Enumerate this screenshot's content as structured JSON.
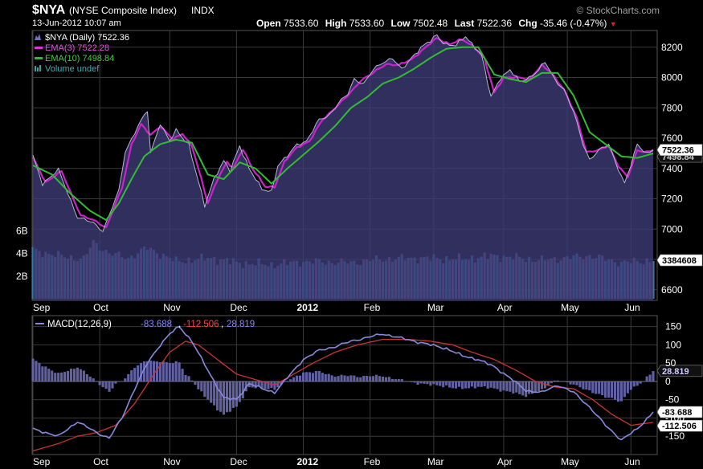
{
  "header": {
    "symbol": "$NYA",
    "name": "(NYSE Composite Index)",
    "exchange": "INDX",
    "watermark": "© StockCharts.com",
    "date": "13-Jun-2012 10:07 am",
    "open_label": "Open",
    "open": "7533.60",
    "high_label": "High",
    "high": "7533.60",
    "low_label": "Low",
    "low": "7502.48",
    "last_label": "Last",
    "last": "7522.36",
    "chg_label": "Chg",
    "chg": "-35.46 (-0.47%)",
    "chg_arrow": "▼"
  },
  "colors": {
    "area_fill": "#3d3c78",
    "area_line": "#b6b6d6",
    "ema3": "#cc22cc",
    "ema10": "#33bb33",
    "vol_up": "#3a7fa5",
    "vol_down": "#7c5a93",
    "macd": "#8888dd",
    "signal": "#cc3333",
    "hist": "#6a6ab4",
    "grid": "#3a3a3a"
  },
  "chart_data": [
    {
      "type": "line",
      "title": "$NYA (Daily) 7522.36",
      "legend": [
        {
          "label": "$NYA (Daily) 7522.36",
          "series": "price"
        },
        {
          "label": "EMA(3) 7522.28",
          "series": "ema3"
        },
        {
          "label": "EMA(10) 7498.84",
          "series": "ema10"
        },
        {
          "label": "Volume undef",
          "series": "volume"
        }
      ],
      "x_labels": [
        "Sep",
        "Oct",
        "Nov",
        "Dec",
        "2012",
        "Feb",
        "Mar",
        "Apr",
        "May",
        "Jun"
      ],
      "x_label_bold": "2012",
      "y_ticks": [
        6600,
        6800,
        7000,
        7200,
        7400,
        7600,
        7800,
        8000,
        8200
      ],
      "ylim": [
        6530,
        8310
      ],
      "volume_ticks": [
        "2B",
        "4B",
        "6B"
      ],
      "volume_ylim": [
        0,
        9
      ],
      "price_label": "7522.36",
      "ema_label": "7498.84",
      "volume_label": "3384608",
      "price_keypoints": [
        [
          0,
          7480
        ],
        [
          3,
          7300
        ],
        [
          8,
          7390
        ],
        [
          14,
          7080
        ],
        [
          19,
          7040
        ],
        [
          22,
          6990
        ],
        [
          27,
          7250
        ],
        [
          29,
          7510
        ],
        [
          33,
          7680
        ],
        [
          36,
          7780
        ],
        [
          37,
          7500
        ],
        [
          40,
          7700
        ],
        [
          43,
          7580
        ],
        [
          45,
          7650
        ],
        [
          49,
          7560
        ],
        [
          54,
          7150
        ],
        [
          57,
          7340
        ],
        [
          60,
          7450
        ],
        [
          62,
          7380
        ],
        [
          65,
          7550
        ],
        [
          68,
          7400
        ],
        [
          72,
          7260
        ],
        [
          75,
          7250
        ],
        [
          77,
          7420
        ],
        [
          80,
          7480
        ],
        [
          83,
          7560
        ],
        [
          86,
          7580
        ],
        [
          90,
          7720
        ],
        [
          93,
          7750
        ],
        [
          96,
          7830
        ],
        [
          99,
          7890
        ],
        [
          101,
          7990
        ],
        [
          104,
          7960
        ],
        [
          107,
          8050
        ],
        [
          110,
          8100
        ],
        [
          113,
          8130
        ],
        [
          116,
          8050
        ],
        [
          119,
          8130
        ],
        [
          122,
          8200
        ],
        [
          125,
          8240
        ],
        [
          127,
          8280
        ],
        [
          128,
          8250
        ],
        [
          130,
          8220
        ],
        [
          133,
          8210
        ],
        [
          136,
          8270
        ],
        [
          139,
          8200
        ],
        [
          141,
          8150
        ],
        [
          144,
          7870
        ],
        [
          147,
          8000
        ],
        [
          150,
          8050
        ],
        [
          153,
          7970
        ],
        [
          156,
          8000
        ],
        [
          159,
          8050
        ],
        [
          161,
          8100
        ],
        [
          164,
          7990
        ],
        [
          167,
          7920
        ],
        [
          170,
          7770
        ],
        [
          173,
          7560
        ],
        [
          175,
          7460
        ],
        [
          178,
          7520
        ],
        [
          181,
          7560
        ],
        [
          184,
          7400
        ],
        [
          186,
          7300
        ],
        [
          188,
          7420
        ],
        [
          190,
          7560
        ],
        [
          193,
          7500
        ],
        [
          195,
          7522
        ]
      ],
      "ema3_keypoints": [
        [
          0,
          7470
        ],
        [
          4,
          7310
        ],
        [
          9,
          7380
        ],
        [
          15,
          7090
        ],
        [
          20,
          7050
        ],
        [
          23,
          7010
        ],
        [
          28,
          7270
        ],
        [
          31,
          7560
        ],
        [
          34,
          7690
        ],
        [
          37,
          7620
        ],
        [
          40,
          7680
        ],
        [
          44,
          7590
        ],
        [
          47,
          7630
        ],
        [
          50,
          7550
        ],
        [
          55,
          7170
        ],
        [
          58,
          7330
        ],
        [
          61,
          7440
        ],
        [
          63,
          7400
        ],
        [
          66,
          7530
        ],
        [
          69,
          7400
        ],
        [
          73,
          7280
        ],
        [
          76,
          7280
        ],
        [
          79,
          7440
        ],
        [
          83,
          7540
        ],
        [
          87,
          7580
        ],
        [
          91,
          7720
        ],
        [
          95,
          7800
        ],
        [
          99,
          7880
        ],
        [
          103,
          7980
        ],
        [
          107,
          8030
        ],
        [
          111,
          8090
        ],
        [
          115,
          8080
        ],
        [
          119,
          8120
        ],
        [
          123,
          8190
        ],
        [
          127,
          8260
        ],
        [
          131,
          8220
        ],
        [
          135,
          8250
        ],
        [
          139,
          8200
        ],
        [
          142,
          8120
        ],
        [
          145,
          7900
        ],
        [
          148,
          8000
        ],
        [
          152,
          8000
        ],
        [
          156,
          7990
        ],
        [
          160,
          8080
        ],
        [
          163,
          8030
        ],
        [
          167,
          7920
        ],
        [
          171,
          7730
        ],
        [
          174,
          7510
        ],
        [
          178,
          7520
        ],
        [
          181,
          7550
        ],
        [
          184,
          7420
        ],
        [
          187,
          7340
        ],
        [
          190,
          7520
        ],
        [
          193,
          7510
        ],
        [
          195,
          7522
        ]
      ],
      "ema10_keypoints": [
        [
          0,
          7420
        ],
        [
          6,
          7360
        ],
        [
          12,
          7230
        ],
        [
          18,
          7120
        ],
        [
          23,
          7060
        ],
        [
          27,
          7170
        ],
        [
          31,
          7330
        ],
        [
          35,
          7480
        ],
        [
          40,
          7560
        ],
        [
          45,
          7590
        ],
        [
          50,
          7570
        ],
        [
          55,
          7360
        ],
        [
          60,
          7330
        ],
        [
          65,
          7440
        ],
        [
          70,
          7400
        ],
        [
          75,
          7300
        ],
        [
          80,
          7400
        ],
        [
          85,
          7490
        ],
        [
          90,
          7580
        ],
        [
          95,
          7680
        ],
        [
          100,
          7800
        ],
        [
          105,
          7870
        ],
        [
          110,
          7960
        ],
        [
          115,
          8000
        ],
        [
          120,
          8060
        ],
        [
          125,
          8130
        ],
        [
          130,
          8190
        ],
        [
          135,
          8200
        ],
        [
          140,
          8200
        ],
        [
          145,
          8020
        ],
        [
          150,
          7990
        ],
        [
          155,
          7970
        ],
        [
          160,
          8030
        ],
        [
          165,
          8030
        ],
        [
          170,
          7880
        ],
        [
          175,
          7640
        ],
        [
          180,
          7560
        ],
        [
          185,
          7480
        ],
        [
          190,
          7470
        ],
        [
          195,
          7499
        ]
      ],
      "volume_keypoints": [
        [
          0,
          4.3
        ],
        [
          8,
          3.8
        ],
        [
          16,
          3.5
        ],
        [
          19,
          5.0
        ],
        [
          24,
          4.0
        ],
        [
          30,
          3.6
        ],
        [
          36,
          4.5
        ],
        [
          45,
          3.3
        ],
        [
          56,
          3.6
        ],
        [
          64,
          3.2
        ],
        [
          75,
          3.0
        ],
        [
          85,
          3.3
        ],
        [
          100,
          3.2
        ],
        [
          110,
          3.5
        ],
        [
          120,
          3.6
        ],
        [
          135,
          3.5
        ],
        [
          145,
          3.8
        ],
        [
          160,
          3.4
        ],
        [
          175,
          3.8
        ],
        [
          185,
          3.2
        ],
        [
          195,
          3.4
        ]
      ]
    },
    {
      "type": "line",
      "title": "MACD(12,26,9)",
      "legend": [
        {
          "label": "MACD(12,26,9)",
          "series": "macd"
        },
        {
          "label": "-83.688",
          "series": "macd"
        },
        {
          "label": "-112.506",
          "series": "signal"
        },
        {
          "label": "28.819",
          "series": "hist"
        }
      ],
      "y_ticks": [
        -150,
        -100,
        -50,
        0,
        50,
        100,
        150
      ],
      "ylim": [
        -200,
        180
      ],
      "hist_label": "28.819",
      "macd_label": "-83.688",
      "signal_label": "-112.506",
      "macd_keypoints": [
        [
          0,
          -130
        ],
        [
          8,
          -150
        ],
        [
          14,
          -110
        ],
        [
          20,
          -140
        ],
        [
          24,
          -155
        ],
        [
          28,
          -100
        ],
        [
          32,
          -20
        ],
        [
          36,
          50
        ],
        [
          40,
          100
        ],
        [
          43,
          130
        ],
        [
          46,
          150
        ],
        [
          50,
          110
        ],
        [
          55,
          30
        ],
        [
          60,
          -45
        ],
        [
          64,
          -50
        ],
        [
          68,
          -5
        ],
        [
          72,
          -20
        ],
        [
          76,
          -30
        ],
        [
          80,
          10
        ],
        [
          85,
          60
        ],
        [
          90,
          85
        ],
        [
          95,
          95
        ],
        [
          100,
          110
        ],
        [
          105,
          120
        ],
        [
          110,
          130
        ],
        [
          115,
          120
        ],
        [
          120,
          110
        ],
        [
          125,
          100
        ],
        [
          130,
          90
        ],
        [
          135,
          70
        ],
        [
          140,
          60
        ],
        [
          145,
          40
        ],
        [
          150,
          10
        ],
        [
          155,
          -25
        ],
        [
          160,
          -30
        ],
        [
          165,
          -10
        ],
        [
          170,
          -30
        ],
        [
          175,
          -70
        ],
        [
          180,
          -120
        ],
        [
          185,
          -160
        ],
        [
          190,
          -130
        ],
        [
          195,
          -84
        ]
      ],
      "signal_keypoints": [
        [
          0,
          -190
        ],
        [
          8,
          -170
        ],
        [
          14,
          -150
        ],
        [
          20,
          -140
        ],
        [
          26,
          -120
        ],
        [
          32,
          -60
        ],
        [
          38,
          20
        ],
        [
          43,
          80
        ],
        [
          48,
          110
        ],
        [
          52,
          100
        ],
        [
          58,
          60
        ],
        [
          64,
          20
        ],
        [
          70,
          5
        ],
        [
          76,
          -10
        ],
        [
          82,
          20
        ],
        [
          88,
          50
        ],
        [
          95,
          80
        ],
        [
          102,
          100
        ],
        [
          110,
          115
        ],
        [
          118,
          115
        ],
        [
          125,
          110
        ],
        [
          132,
          100
        ],
        [
          138,
          80
        ],
        [
          145,
          60
        ],
        [
          152,
          30
        ],
        [
          158,
          0
        ],
        [
          164,
          -15
        ],
        [
          170,
          -20
        ],
        [
          176,
          -50
        ],
        [
          182,
          -90
        ],
        [
          188,
          -120
        ],
        [
          195,
          -112
        ]
      ]
    }
  ]
}
